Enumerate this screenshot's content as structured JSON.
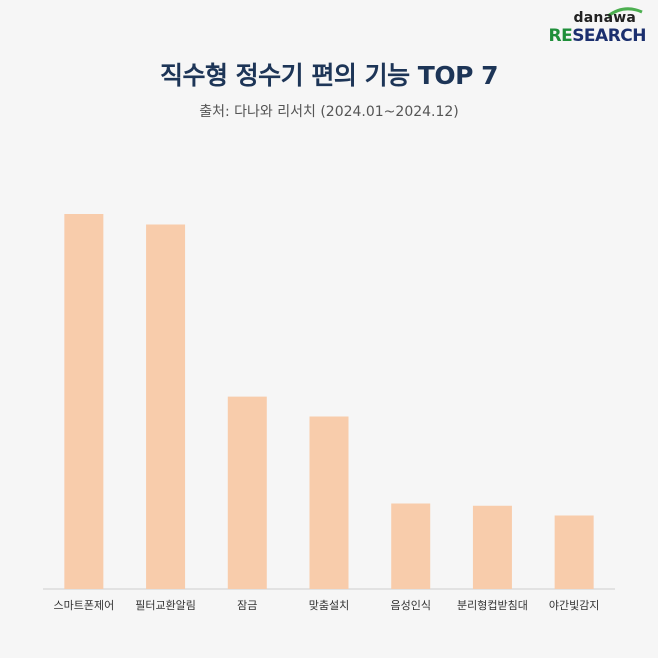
{
  "brand": {
    "top": "danawa",
    "bottom_accent": "RE",
    "bottom_rest": "SEARCH",
    "accent_color": "#1f8f3a",
    "brand_color": "#1b2f6e"
  },
  "chart_data": {
    "type": "bar",
    "title": "직수형 정수기 편의 기능 TOP 7",
    "subtitle": "출처: 다나와 리서치 (2024.01~2024.12)",
    "categories": [
      "스마트폰제어",
      "필터교환알림",
      "잠금",
      "맞춤설치",
      "음성인식",
      "분리형컵받침대",
      "야간빛감지"
    ],
    "values": [
      100,
      97.2,
      51.3,
      46.0,
      22.8,
      22.2,
      19.6
    ],
    "ylim": [
      0,
      100
    ],
    "grid": false,
    "bar_color": "#f8ccab",
    "axis_color": "#cfcfcf"
  }
}
